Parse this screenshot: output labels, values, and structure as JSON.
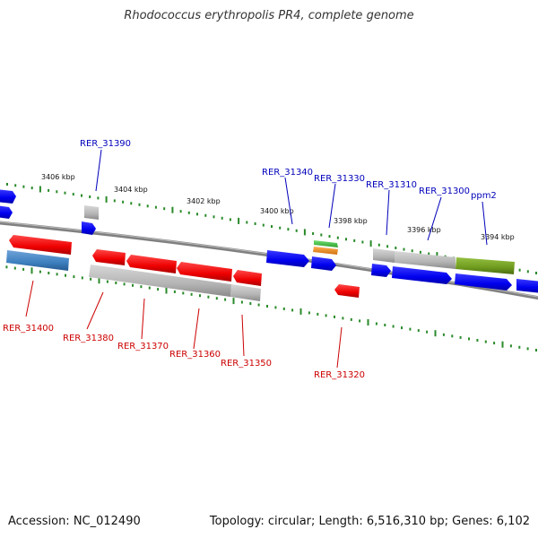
{
  "title": "Rhodococcus erythropolis PR4, complete genome",
  "footer": {
    "accession": "Accession: NC_012490",
    "summary": "Topology: circular; Length: 6,516,310 bp; Genes: 6,102"
  },
  "colors": {
    "backbone": "#808080",
    "tick": "#2a8a2a",
    "forward_label": "#0000bb",
    "reverse_label": "#cc0000",
    "blue": "#0000ee",
    "red": "#ee0000",
    "gray": "#b4b4b4",
    "steelblue": "#3d7fbf",
    "olive": "#6e9a1e",
    "green": "#40c040",
    "orange": "#f09020"
  },
  "scale_labels": [
    "3406 kbp",
    "3404 kbp",
    "3402 kbp",
    "3400 kbp",
    "3398 kbp",
    "3396 kbp",
    "3394 kbp"
  ],
  "gene_labels_forward": [
    "RER_31390",
    "RER_31340",
    "RER_31330",
    "RER_31310",
    "RER_31300",
    "ppm2"
  ],
  "gene_labels_reverse": [
    "RER_31400",
    "RER_31380",
    "RER_31370",
    "RER_31360",
    "RER_31350",
    "RER_31320"
  ]
}
